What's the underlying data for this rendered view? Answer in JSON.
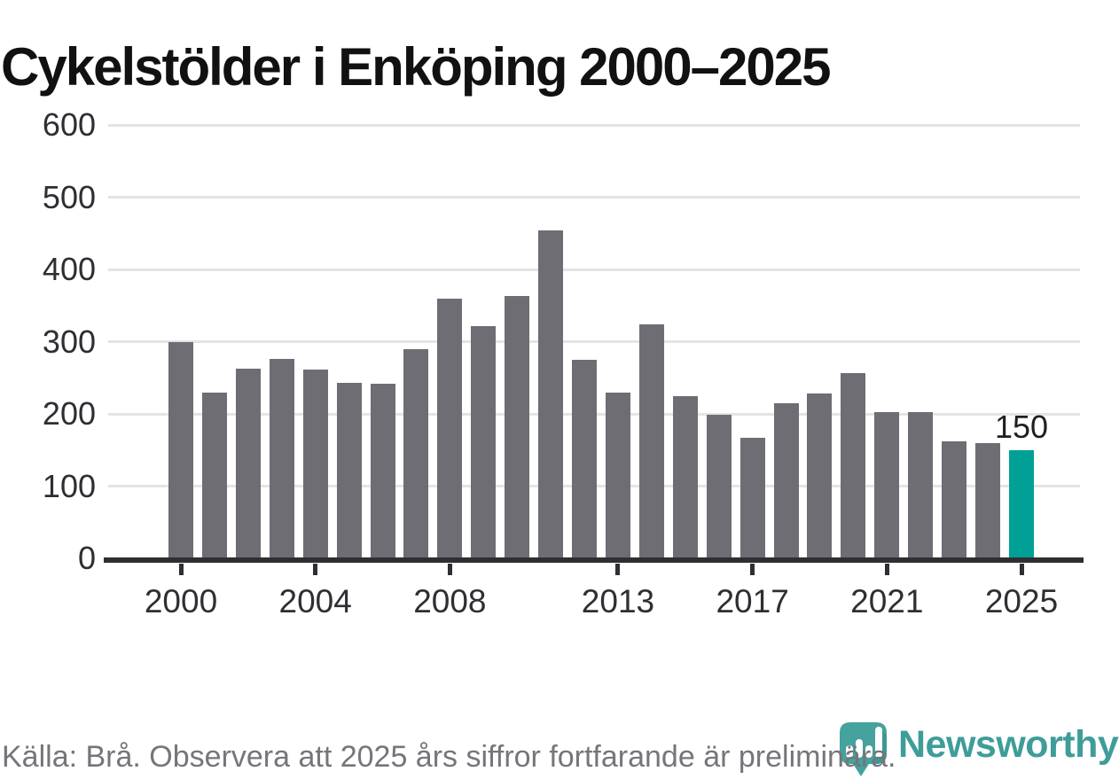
{
  "title": "Cykelstölder i Enköping 2000–2025",
  "footer": {
    "source": "Källa: Brå. Observera att 2025 års siffror fortfarande är preliminära.",
    "brand": "Newsworthy"
  },
  "colors": {
    "bar": "#6E6D73",
    "highlight": "#00A096",
    "grid": "#E4E4E6",
    "axis": "#2F2F33",
    "axis_label": "#2E2E33",
    "title": "#111111",
    "annotation": "#1F1F1F",
    "footer_text": "#75757B",
    "brand_text": "#3E9D99",
    "logo_pin": "#45A29D"
  },
  "chart_data": {
    "type": "bar",
    "title": "Cykelstölder i Enköping 2000–2025",
    "series_name": "Cykelstölder",
    "x": [
      2000,
      2001,
      2002,
      2003,
      2004,
      2005,
      2006,
      2007,
      2008,
      2009,
      2010,
      2011,
      2012,
      2013,
      2014,
      2015,
      2016,
      2017,
      2018,
      2019,
      2020,
      2021,
      2022,
      2023,
      2024,
      2025
    ],
    "values": [
      300,
      229,
      263,
      276,
      261,
      243,
      242,
      290,
      359,
      322,
      363,
      454,
      275,
      229,
      324,
      224,
      199,
      167,
      215,
      228,
      257,
      202,
      202,
      162,
      160,
      150
    ],
    "ylim": [
      0,
      600
    ],
    "yticks": [
      0,
      100,
      200,
      300,
      400,
      500,
      600
    ],
    "xticks": [
      2000,
      2004,
      2008,
      2013,
      2017,
      2021,
      2025
    ],
    "grid": true,
    "legend": false,
    "bar_color": "#6E6D73",
    "highlight": {
      "x": 2025,
      "color": "#00A096"
    },
    "annotations": [
      {
        "x": 2025,
        "y": 150,
        "text": "150"
      }
    ]
  }
}
